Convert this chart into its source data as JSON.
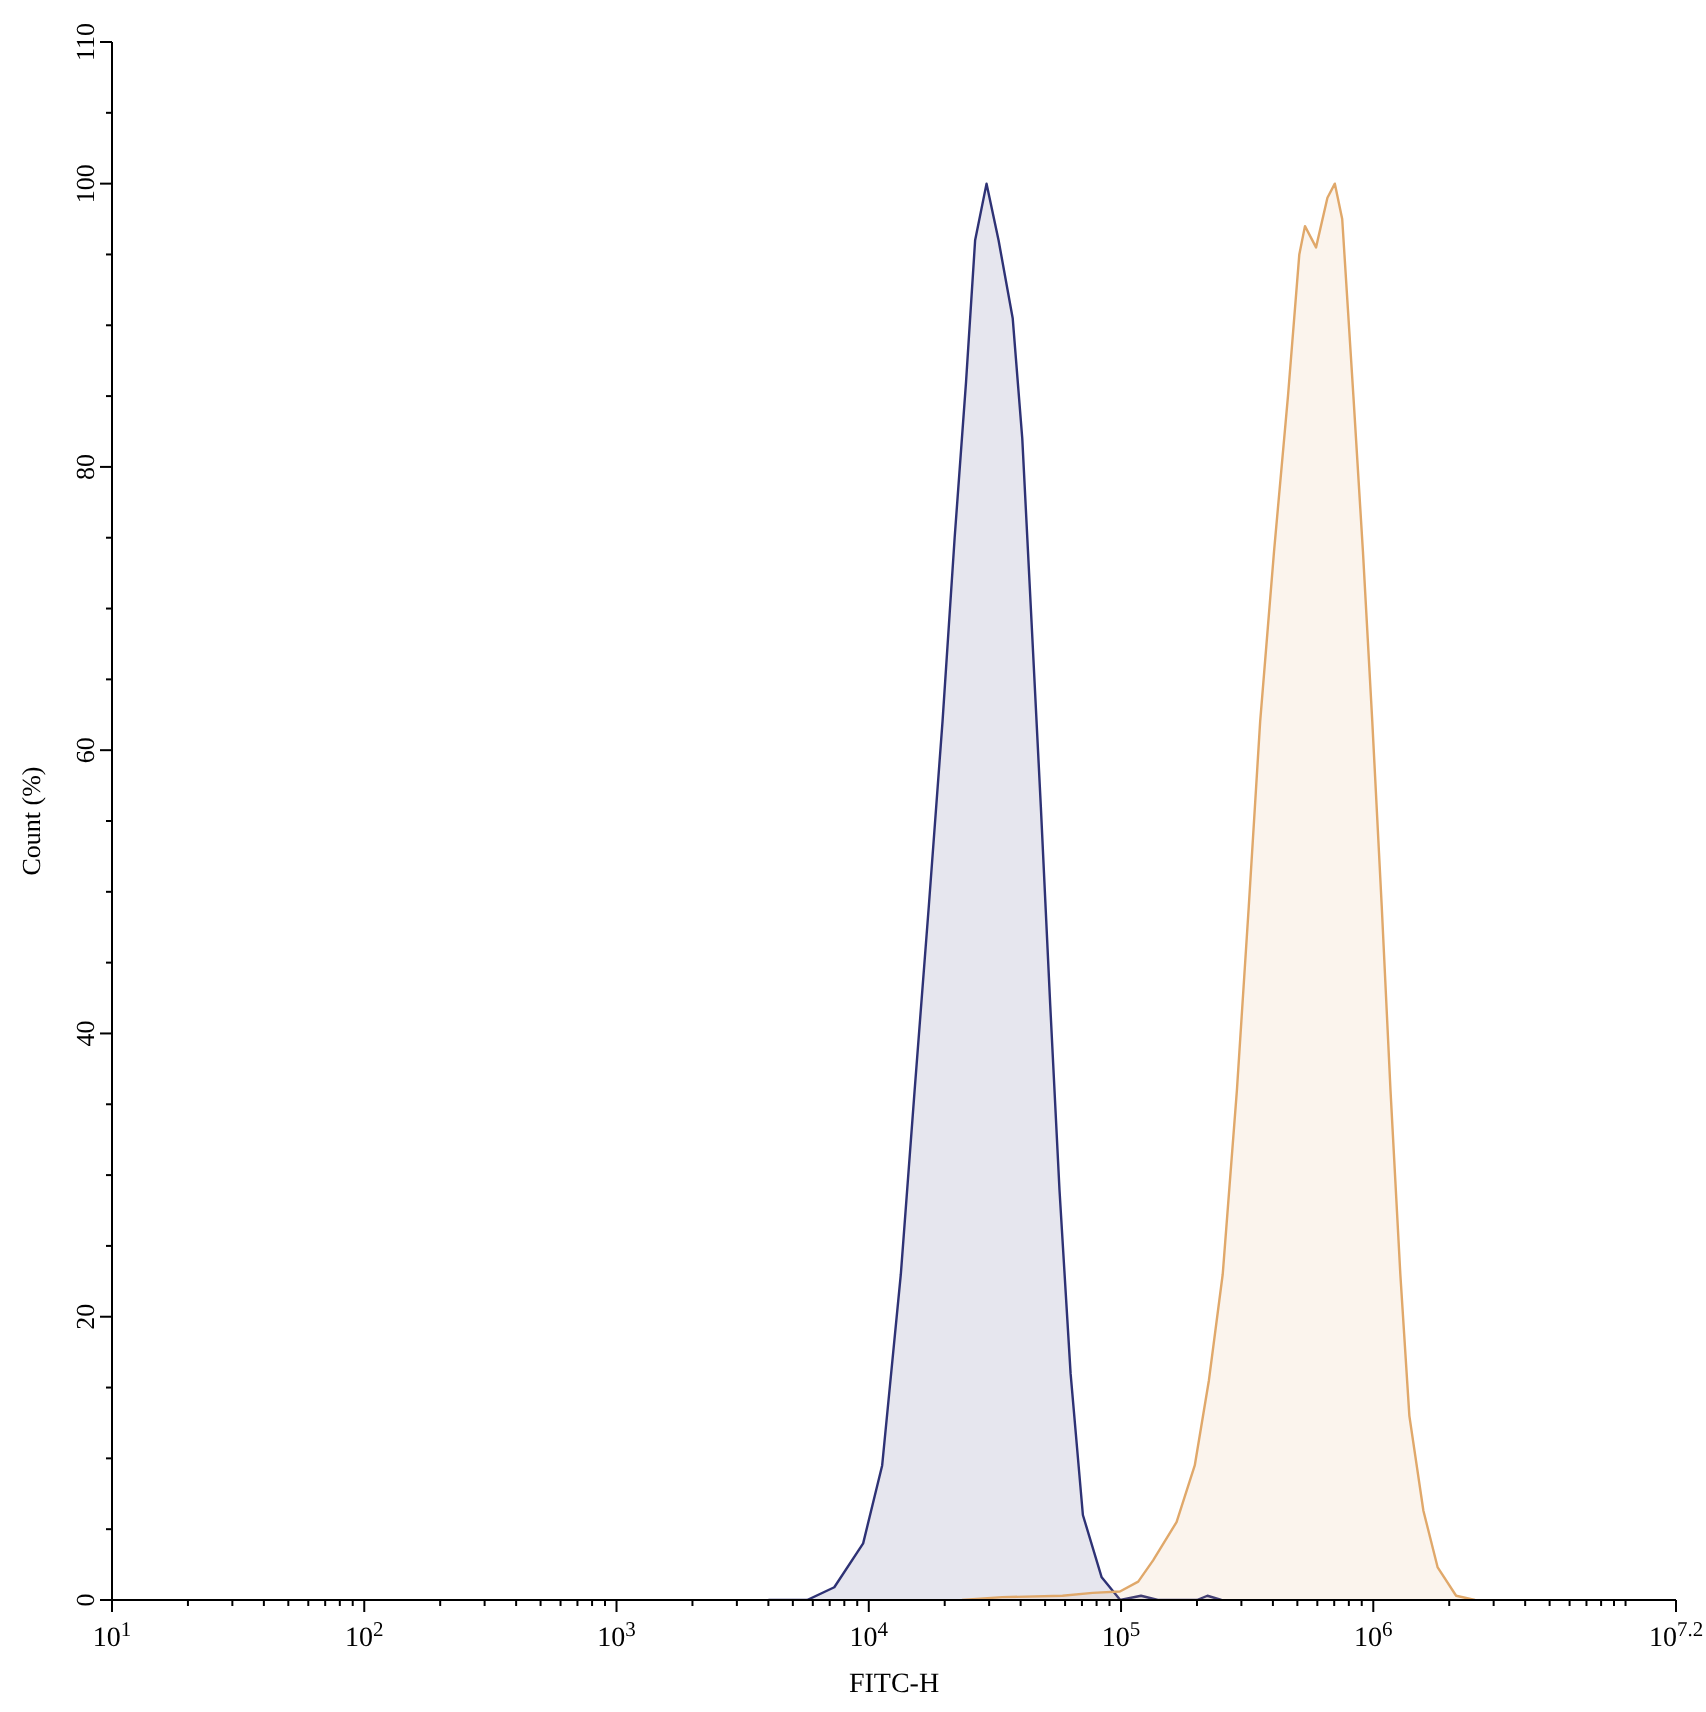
{
  "chart_data": {
    "type": "area",
    "xlabel": "FITC-H",
    "ylabel": "Count (%)",
    "log": "x",
    "xlim": [
      10,
      15848932
    ],
    "xticks": [
      {
        "value": 10,
        "label": "10$^{1}$"
      },
      {
        "value": 20,
        "label": null
      },
      {
        "value": 30,
        "label": null
      },
      {
        "value": 40,
        "label": null
      },
      {
        "value": 50,
        "label": null
      },
      {
        "value": 60,
        "label": null
      },
      {
        "value": 70,
        "label": null
      },
      {
        "value": 80,
        "label": null
      },
      {
        "value": 90,
        "label": null
      },
      {
        "value": 100,
        "label": "10$^{2}$"
      },
      {
        "value": 200,
        "label": null
      },
      {
        "value": 300,
        "label": null
      },
      {
        "value": 400,
        "label": null
      },
      {
        "value": 500,
        "label": null
      },
      {
        "value": 600,
        "label": null
      },
      {
        "value": 700,
        "label": null
      },
      {
        "value": 800,
        "label": null
      },
      {
        "value": 900,
        "label": null
      },
      {
        "value": 1000,
        "label": "10$^{3}$"
      },
      {
        "value": 2000,
        "label": null
      },
      {
        "value": 3000,
        "label": null
      },
      {
        "value": 4000,
        "label": null
      },
      {
        "value": 5000,
        "label": null
      },
      {
        "value": 6000,
        "label": null
      },
      {
        "value": 7000,
        "label": null
      },
      {
        "value": 8000,
        "label": null
      },
      {
        "value": 9000,
        "label": null
      },
      {
        "value": 10000,
        "label": "10$^{4}$"
      },
      {
        "value": 20000,
        "label": null
      },
      {
        "value": 30000,
        "label": null
      },
      {
        "value": 40000,
        "label": null
      },
      {
        "value": 50000,
        "label": null
      },
      {
        "value": 60000,
        "label": null
      },
      {
        "value": 70000,
        "label": null
      },
      {
        "value": 80000,
        "label": null
      },
      {
        "value": 90000,
        "label": null
      },
      {
        "value": 100000,
        "label": "10$^{5}$"
      },
      {
        "value": 200000,
        "label": null
      },
      {
        "value": 300000,
        "label": null
      },
      {
        "value": 400000,
        "label": null
      },
      {
        "value": 500000,
        "label": null
      },
      {
        "value": 600000,
        "label": null
      },
      {
        "value": 700000,
        "label": null
      },
      {
        "value": 800000,
        "label": null
      },
      {
        "value": 900000,
        "label": null
      },
      {
        "value": 1000000,
        "label": "10$^{6}$"
      },
      {
        "value": 2000000,
        "label": null
      },
      {
        "value": 3000000,
        "label": null
      },
      {
        "value": 4000000,
        "label": null
      },
      {
        "value": 5000000,
        "label": null
      },
      {
        "value": 6000000,
        "label": null
      },
      {
        "value": 7000000,
        "label": null
      },
      {
        "value": 8000000,
        "label": null
      },
      {
        "value": 9000000,
        "label": null
      },
      {
        "value": 10000000,
        "label": null
      },
      {
        "value": 15848932,
        "label": "10$^{7.2}$"
      }
    ],
    "ylim": [
      0,
      110
    ],
    "yticks": [
      0,
      {
        "value": 5,
        "label": null
      },
      {
        "value": 10,
        "label": null
      },
      {
        "value": 15,
        "label": null
      },
      20,
      {
        "value": 25,
        "label": null
      },
      {
        "value": 30,
        "label": null
      },
      {
        "value": 35,
        "label": null
      },
      40,
      {
        "value": 45,
        "label": null
      },
      {
        "value": 50,
        "label": null
      },
      {
        "value": 55,
        "label": null
      },
      60,
      {
        "value": 65,
        "label": null
      },
      {
        "value": 70,
        "label": null
      },
      {
        "value": 75,
        "label": null
      },
      80,
      {
        "value": 85,
        "label": null
      },
      {
        "value": 90,
        "label": null
      },
      {
        "value": 95,
        "label": null
      },
      100,
      {
        "value": 105,
        "label": null
      },
      110
    ],
    "series": [
      {
        "color": "#2e3275",
        "x": [
          4000,
          5700,
          7300,
          9500,
          11300,
          13400,
          15200,
          17300,
          19600,
          21900,
          24300,
          26400,
          29300,
          32700,
          37200,
          40600,
          44200,
          48100,
          52400,
          57000,
          63100,
          70600,
          83800,
          99300,
          120000,
          140000,
          200000,
          220000,
          250000
        ],
        "values": [
          0,
          0,
          0.9,
          4,
          9.5,
          23,
          36,
          49,
          62,
          75,
          86,
          96,
          100,
          96,
          90.5,
          82,
          69,
          56,
          42,
          29,
          16,
          6,
          1.6,
          0,
          0.3,
          0,
          0,
          0.3,
          0
        ]
      },
      {
        "color": "#e0a86a",
        "x": [
          23400,
          33800,
          58600,
          77100,
          99000,
          117000,
          134000,
          166000,
          196000,
          223000,
          253000,
          288000,
          321000,
          356000,
          404000,
          459000,
          509000,
          536000,
          593000,
          658000,
          704000,
          753000,
          834000,
          910000,
          991000,
          1080000,
          1170000,
          1280000,
          1390000,
          1580000,
          1800000,
          2130000,
          2530000
        ],
        "values": [
          0,
          0.2,
          0.3,
          0.5,
          0.6,
          1.3,
          2.8,
          5.5,
          9.5,
          15.5,
          23,
          36,
          49,
          62,
          74,
          85,
          95,
          97,
          95.5,
          99,
          100,
          97.5,
          85,
          74,
          62,
          49,
          36,
          23,
          13,
          6.3,
          2.3,
          0.3,
          0
        ]
      }
    ]
  }
}
